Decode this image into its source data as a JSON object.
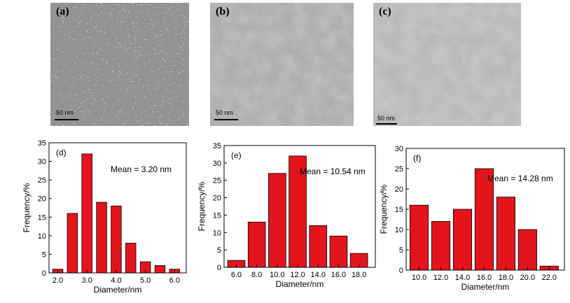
{
  "tem_images": [
    {
      "panel_label": "(a)",
      "scale_label": "50 nm"
    },
    {
      "panel_label": "(b)",
      "scale_label": "50 nm"
    },
    {
      "panel_label": "(c)",
      "scale_label": "50 nm"
    }
  ],
  "chart_data": [
    {
      "type": "bar",
      "panel_label": "(d)",
      "annotation": "Mean = 3.20 nm",
      "xlabel": "Diameter/nm",
      "ylabel": "Frequency/%",
      "x_centers": [
        2.0,
        2.5,
        3.0,
        3.5,
        4.0,
        4.5,
        5.0,
        5.5,
        6.0
      ],
      "values": [
        1,
        16,
        32,
        19,
        18,
        8,
        3,
        2,
        1
      ],
      "bar_width": 0.35,
      "xlim": [
        1.7,
        6.4
      ],
      "ylim": [
        0,
        35
      ],
      "xticks": [
        "2.0",
        "3.0",
        "4.0",
        "5.0",
        "6.0"
      ],
      "yticks": [
        "0",
        "5",
        "10",
        "15",
        "20",
        "25",
        "30",
        "35"
      ],
      "bar_color": "#e4141b"
    },
    {
      "type": "bar",
      "panel_label": "(e)",
      "annotation": "Mean = 10.54 nm",
      "xlabel": "Diameter/nm",
      "ylabel": "Frequency/%",
      "x_centers": [
        6.0,
        8.0,
        10.0,
        12.0,
        14.0,
        16.0,
        18.0
      ],
      "values": [
        2,
        13,
        27,
        32,
        12,
        9,
        4
      ],
      "bar_width": 1.7,
      "xlim": [
        4.8,
        19.6
      ],
      "ylim": [
        0,
        35
      ],
      "xticks": [
        "6.0",
        "8.0",
        "10.0",
        "12.0",
        "14.0",
        "16.0",
        "18.0"
      ],
      "yticks": [
        "0",
        "5",
        "10",
        "15",
        "20",
        "25",
        "30",
        "35"
      ],
      "bar_color": "#e4141b"
    },
    {
      "type": "bar",
      "panel_label": "(f)",
      "annotation": "Mean = 14.28 nm",
      "xlabel": "Diameter/nm",
      "ylabel": "Frequency/%",
      "x_centers": [
        10.0,
        12.0,
        14.0,
        16.0,
        18.0,
        20.0,
        22.0
      ],
      "values": [
        16,
        12,
        15,
        25,
        18,
        10,
        1
      ],
      "bar_width": 1.7,
      "xlim": [
        8.8,
        23.4
      ],
      "ylim": [
        0,
        30
      ],
      "xticks": [
        "10.0",
        "12.0",
        "14.0",
        "16.0",
        "18.0",
        "20.0",
        "22.0"
      ],
      "yticks": [
        "0",
        "5",
        "10",
        "15",
        "20",
        "25",
        "30"
      ],
      "bar_color": "#e4141b"
    }
  ]
}
